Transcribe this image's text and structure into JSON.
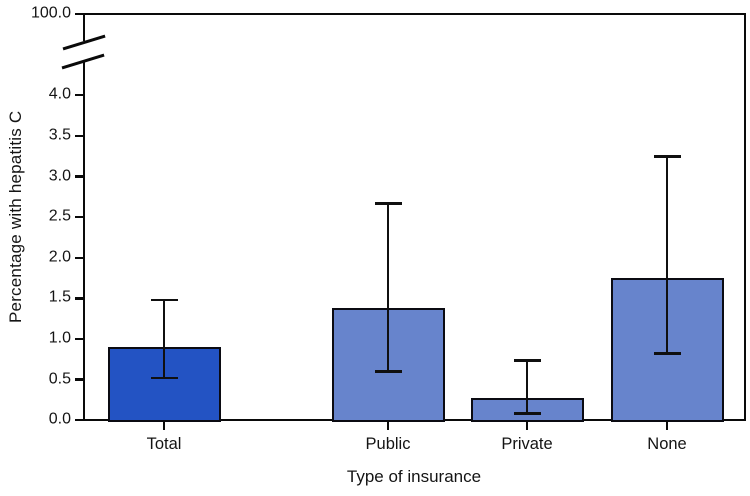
{
  "figure": {
    "background": "#ffffff",
    "frame_color": "#0a0a0a",
    "text_color": "#141414"
  },
  "chart_data": {
    "type": "bar",
    "title": "",
    "xlabel": "Type of insurance",
    "ylabel": "Percentage with hepatitis C",
    "categories": [
      "Total",
      "Public",
      "Private",
      "None"
    ],
    "series": [
      {
        "name": "Percentage with hepatitis C",
        "values": [
          0.9,
          1.38,
          0.28,
          1.75
        ],
        "ci_low": [
          0.52,
          0.6,
          0.08,
          0.82
        ],
        "ci_high": [
          1.48,
          2.67,
          0.74,
          3.25
        ]
      }
    ],
    "bar_colors": [
      "#2353C3",
      "#6784CC",
      "#6784CC",
      "#6784CC"
    ],
    "bar_border_color": "#0b0b12",
    "error_bar_color": "#101010",
    "grid": false,
    "legend": false,
    "y_axis": {
      "broken": true,
      "top_tick_label": "100.0",
      "top_tick_value": 100.0,
      "tick_labels": [
        "4.0",
        "3.5",
        "3.0",
        "2.5",
        "2.0",
        "1.5",
        "1.0",
        "0.5",
        "0.0"
      ],
      "tick_values": [
        4.0,
        3.5,
        3.0,
        2.5,
        2.0,
        1.5,
        1.0,
        0.5,
        0.0
      ],
      "lower_segment_range": [
        0.0,
        4.0
      ]
    }
  }
}
